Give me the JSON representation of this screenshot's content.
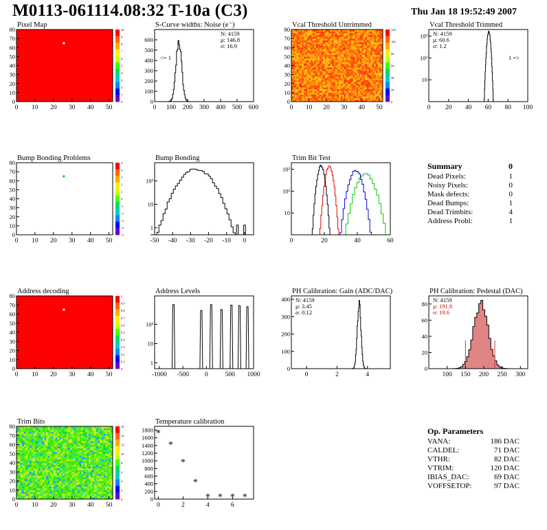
{
  "title": "M0113-061114.08:32 T-10a (C3)",
  "date": "Thu Jan 18 19:52:49 2007",
  "colors": {
    "red_map": "#ff0000",
    "black": "#000000",
    "trim_red": "#e00000",
    "trim_blue": "#0000cc",
    "trim_green": "#00cc00",
    "pedestal_fill": "#cc3333"
  },
  "chart_data": [
    {
      "id": "pixel-map",
      "type": "heatmap",
      "title": "Pixel Map",
      "xlim": [
        0,
        52
      ],
      "ylim": [
        0,
        80
      ],
      "xticks": [
        "0",
        "10",
        "20",
        "30",
        "40",
        "50"
      ],
      "yticks": [
        "0",
        "10",
        "20",
        "30",
        "40",
        "50",
        "60",
        "70",
        "80"
      ],
      "fill": "uniform red",
      "outlier": {
        "x": 25,
        "y": 65,
        "color": "white"
      },
      "zticks": [
        "0",
        "1",
        "2",
        "3",
        "4",
        "5",
        "6",
        "7",
        "8",
        "9",
        "10"
      ]
    },
    {
      "id": "noise",
      "type": "histogram",
      "title": "S-Curve widths: Noise (e⁻)",
      "xlim": [
        0,
        600
      ],
      "ylim": [
        0,
        700
      ],
      "xticks": [
        "0",
        "100",
        "200",
        "300",
        "400",
        "500",
        "600"
      ],
      "yticks": [
        "0",
        "100",
        "200",
        "300",
        "400",
        "500",
        "600"
      ],
      "stats": [
        "N: 4159",
        "μ: 146.8",
        "σ: 16.9"
      ],
      "annotation": "<= 1",
      "peak": {
        "mean": 146.8,
        "sigma": 16.9,
        "height": 590
      }
    },
    {
      "id": "vcal-untrimmed",
      "type": "heatmap",
      "title": "Vcal Threshold Untrimmed",
      "xlim": [
        0,
        52
      ],
      "ylim": [
        0,
        80
      ],
      "xticks": [
        "0",
        "10",
        "20",
        "30",
        "40",
        "50"
      ],
      "yticks": [
        "0",
        "10",
        "20",
        "30",
        "40",
        "50",
        "60",
        "70",
        "80"
      ],
      "fill": "random orange-red",
      "zticks": [
        "0",
        "20",
        "40",
        "60",
        "80",
        "100",
        "120"
      ]
    },
    {
      "id": "vcal-trimmed",
      "type": "histogram",
      "title": "Vcal Threshold Trimmed",
      "xlim": [
        0,
        100
      ],
      "ylim": [
        1,
        2000
      ],
      "log": true,
      "xticks": [
        "0",
        "20",
        "40",
        "60",
        "80",
        "100"
      ],
      "yticks": [
        "10",
        "10²",
        "10³"
      ],
      "stats": [
        "N: 4159",
        "μ: 60.6",
        "σ:  1.2"
      ],
      "annotation": "1 =>",
      "peak": {
        "mean": 60.6,
        "sigma": 1.2,
        "height": 1600
      }
    },
    {
      "id": "bump-problems",
      "type": "heatmap",
      "title": "Bump Bonding Problems",
      "xlim": [
        0,
        52
      ],
      "ylim": [
        0,
        80
      ],
      "xticks": [
        "0",
        "10",
        "20",
        "30",
        "40",
        "50"
      ],
      "yticks": [
        "0",
        "10",
        "20",
        "30",
        "40",
        "50",
        "60",
        "70",
        "80"
      ],
      "fill": "white",
      "outlier": {
        "x": 25,
        "y": 65,
        "color": "green"
      },
      "zticks": [
        "-5",
        "-4",
        "-3",
        "-2",
        "-1",
        "0",
        "1",
        "2",
        "3",
        "4",
        "5"
      ]
    },
    {
      "id": "bump-bonding",
      "type": "histogram",
      "title": "Bump Bonding",
      "xlim": [
        -50,
        5
      ],
      "ylim": [
        0.5,
        600
      ],
      "log": true,
      "xticks": [
        "-50",
        "-40",
        "-30",
        "-20",
        "-10",
        "0"
      ],
      "yticks": [
        "1",
        "10",
        "10²"
      ],
      "peak": {
        "mean": -27,
        "sigma": 6,
        "height": 320
      }
    },
    {
      "id": "trim-bit",
      "type": "histogram",
      "title": "Trim Bit Test",
      "xlim": [
        0,
        60
      ],
      "ylim": [
        1,
        2000
      ],
      "log": true,
      "xticks": [
        "0",
        "20",
        "40",
        "60"
      ],
      "yticks": [
        "10",
        "10²",
        "10³"
      ],
      "series": [
        {
          "mean": 18,
          "sigma": 1.4,
          "height": 1500,
          "color": "black"
        },
        {
          "mean": 23,
          "sigma": 1.5,
          "height": 1400,
          "color": "red"
        },
        {
          "mean": 39,
          "sigma": 2.5,
          "height": 900,
          "color": "blue"
        },
        {
          "mean": 45,
          "sigma": 3.5,
          "height": 600,
          "color": "green"
        }
      ]
    },
    {
      "id": "address-decoding",
      "type": "heatmap",
      "title": "Address decoding",
      "xlim": [
        0,
        52
      ],
      "ylim": [
        0,
        80
      ],
      "xticks": [
        "0",
        "10",
        "20",
        "30",
        "40",
        "50"
      ],
      "yticks": [
        "0",
        "10",
        "20",
        "30",
        "40",
        "50",
        "60",
        "70",
        "80"
      ],
      "fill": "uniform red",
      "outlier": {
        "x": 25,
        "y": 65,
        "color": "white"
      },
      "zticks": [
        "0",
        "0.1",
        "0.2",
        "0.3",
        "0.4",
        "0.5",
        "0.6",
        "0.7",
        "0.8",
        "0.9",
        "1"
      ]
    },
    {
      "id": "address-levels",
      "type": "histogram",
      "title": "Address Levels",
      "xlim": [
        -1100,
        1000
      ],
      "ylim": [
        0.5,
        3000
      ],
      "log": true,
      "xticks": [
        "-1000",
        "-500",
        "0",
        "500",
        "1000"
      ],
      "yticks": [
        "1",
        "10",
        "10²"
      ],
      "spikes": [
        -700,
        -110,
        100,
        320,
        530,
        700,
        870
      ]
    },
    {
      "id": "ph-gain",
      "type": "histogram",
      "title": "PH Calibration: Gain (ADC/DAC)",
      "xlim": [
        -1,
        5.5
      ],
      "ylim": [
        0,
        420
      ],
      "xticks": [
        "0",
        "2",
        "4"
      ],
      "yticks": [
        "0",
        "100",
        "200",
        "300",
        "400"
      ],
      "stats": [
        "N: 4159",
        "μ: 3.45",
        "σ: 0.12"
      ],
      "peak": {
        "mean": 3.45,
        "sigma": 0.12,
        "height": 390
      }
    },
    {
      "id": "ph-pedestal",
      "type": "histogram",
      "title": "PH Calibration: Pedestal (DAC)",
      "xlim": [
        50,
        320
      ],
      "ylim": [
        0,
        90
      ],
      "xticks": [
        "100",
        "150",
        "200",
        "250",
        "300"
      ],
      "yticks": [
        "0",
        "20",
        "40",
        "60",
        "80"
      ],
      "stats": [
        "N: 4159",
        "μ: 191.8",
        "σ: 19.6"
      ],
      "peak": {
        "mean": 191.8,
        "sigma": 19.6,
        "height": 82
      },
      "markers": [
        150,
        230
      ]
    },
    {
      "id": "trim-bits",
      "type": "heatmap",
      "title": "Trim Bits",
      "xlim": [
        0,
        52
      ],
      "ylim": [
        0,
        80
      ],
      "xticks": [
        "0",
        "10",
        "20",
        "30",
        "40",
        "50"
      ],
      "yticks": [
        "0",
        "10",
        "20",
        "30",
        "40",
        "50",
        "60",
        "70",
        "80"
      ],
      "fill": "random green",
      "zticks": [
        "0",
        "2",
        "4",
        "6",
        "8",
        "10",
        "12",
        "14",
        "16"
      ]
    },
    {
      "id": "temperature",
      "type": "scatter",
      "title": "Temperature calibration",
      "xlim": [
        -0.3,
        7.7
      ],
      "ylim": [
        0,
        1900
      ],
      "xticks": [
        "0",
        "2",
        "4",
        "6"
      ],
      "yticks": [
        "0",
        "200",
        "400",
        "600",
        "800",
        "1000",
        "1200",
        "1400",
        "1600",
        "1800"
      ],
      "x": [
        0,
        1,
        2,
        3,
        4,
        5,
        6,
        7
      ],
      "y": [
        1720,
        1420,
        960,
        440,
        50,
        50,
        50,
        50
      ]
    }
  ],
  "summary": {
    "heading": "Summary",
    "total": "0",
    "rows": [
      {
        "label": "Dead Pixels:",
        "value": "1"
      },
      {
        "label": "Noisy Pixels:",
        "value": "0"
      },
      {
        "label": "Mask defects:",
        "value": "0"
      },
      {
        "label": "Dead Bumps:",
        "value": "1"
      },
      {
        "label": "Dead Trimbits:",
        "value": "4"
      },
      {
        "label": "Address Probl:",
        "value": "1"
      }
    ]
  },
  "op_params": {
    "heading": "Op. Parameters",
    "rows": [
      {
        "label": "VANA:",
        "value": "186 DAC"
      },
      {
        "label": "CALDEL:",
        "value": "71 DAC"
      },
      {
        "label": "VTHR:",
        "value": "82 DAC"
      },
      {
        "label": "VTRIM:",
        "value": "120 DAC"
      },
      {
        "label": "IBIAS_DAC:",
        "value": "69 DAC"
      },
      {
        "label": "VOFFSETOP:",
        "value": "97 DAC"
      }
    ]
  }
}
